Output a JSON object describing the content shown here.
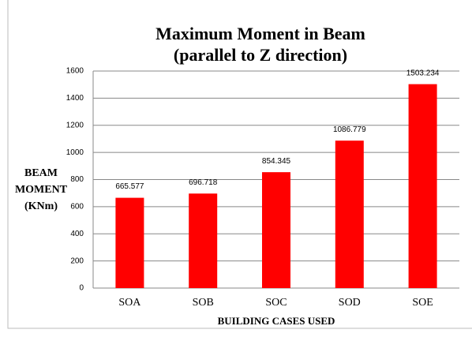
{
  "chart_data": {
    "type": "bar",
    "title": [
      "Maximum Moment in Beam",
      "(parallel to Z direction)"
    ],
    "y_label": [
      "BEAM",
      "MOMENT",
      "(KNm)"
    ],
    "x_label": "BUILDING CASES USED",
    "categories": [
      "SOA",
      "SOB",
      "SOC",
      "SOD",
      "SOE"
    ],
    "values": [
      665.577,
      696.718,
      854.345,
      1086.779,
      1503.234
    ],
    "color": "#ff0000",
    "ylim": [
      0,
      1600
    ],
    "yticks": [
      0,
      200,
      400,
      600,
      800,
      1000,
      1200,
      1400,
      1600
    ],
    "grid": true
  }
}
